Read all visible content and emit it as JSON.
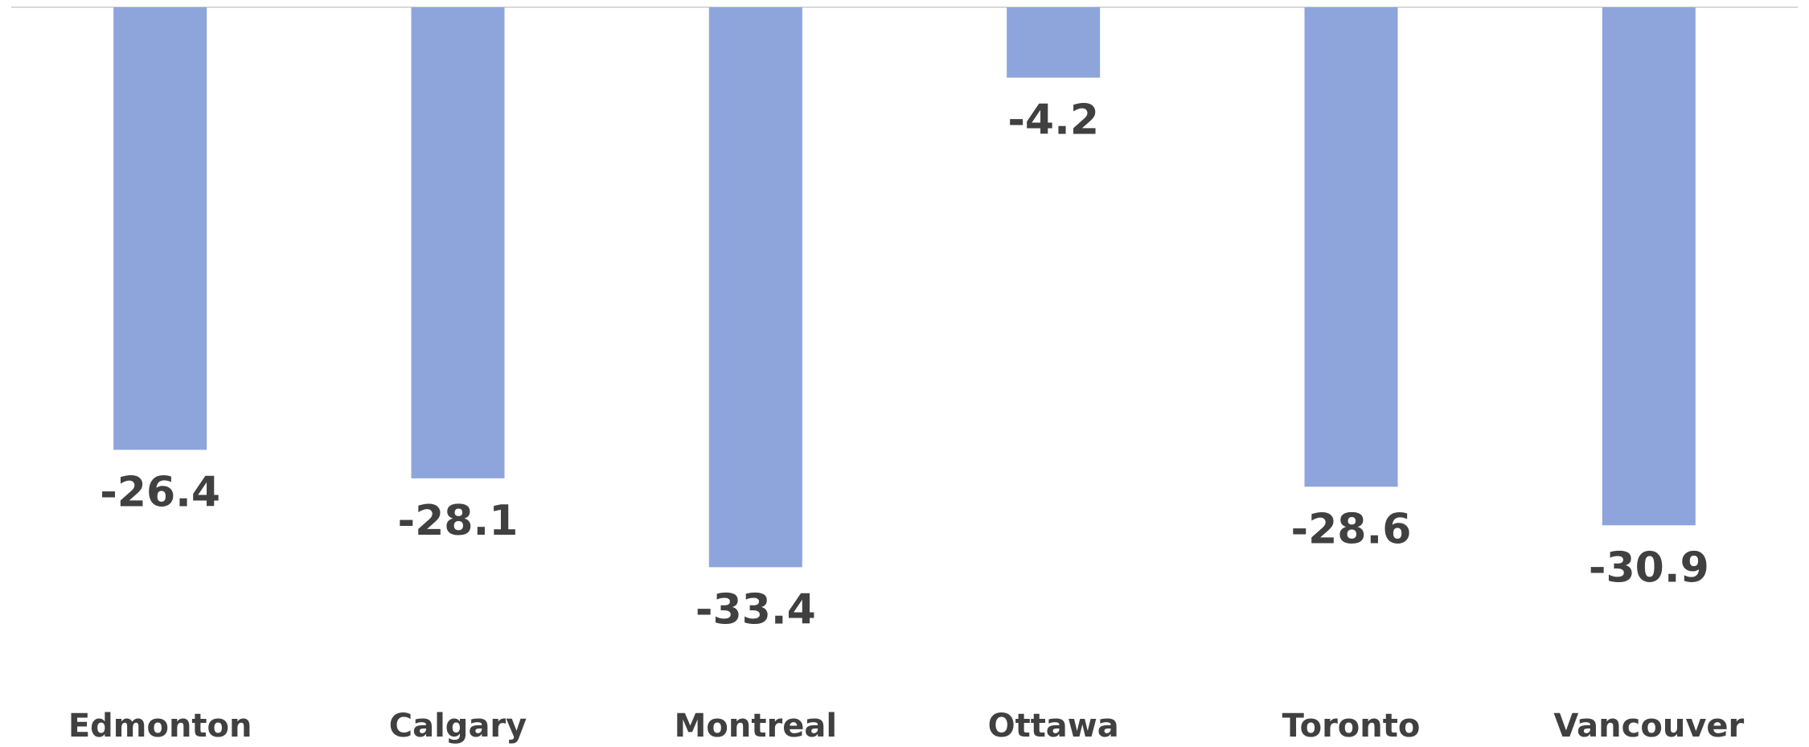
{
  "chart_data": {
    "type": "bar",
    "categories": [
      "Edmonton",
      "Calgary",
      "Montreal",
      "Ottawa",
      "Toronto",
      "Vancouver"
    ],
    "values": [
      -26.4,
      -28.1,
      -33.4,
      -4.2,
      -28.6,
      -30.9
    ],
    "color": "#8ea5dc",
    "ylim": [
      -40,
      0
    ]
  }
}
